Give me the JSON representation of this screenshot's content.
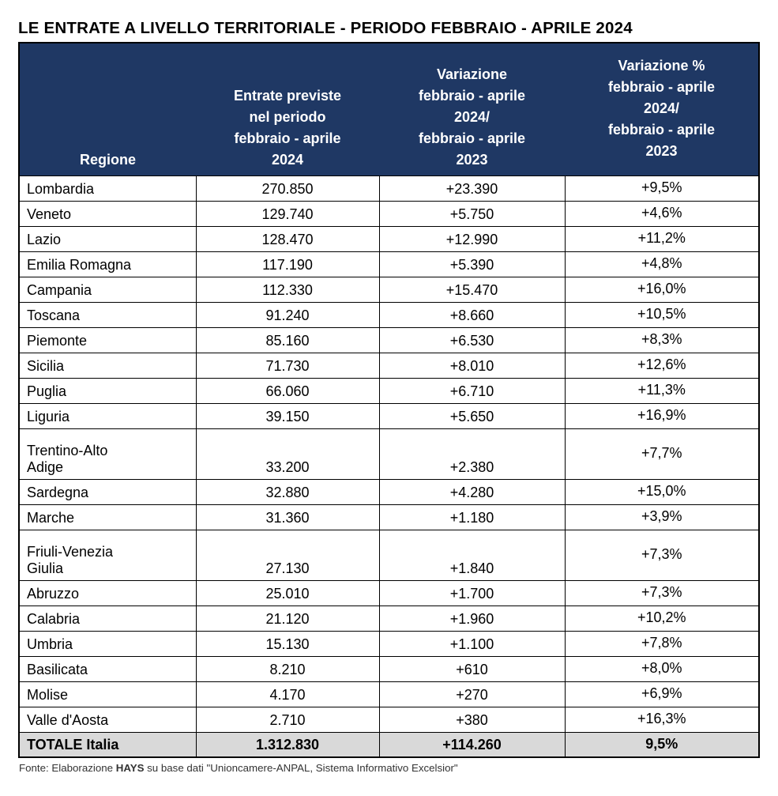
{
  "title": "LE ENTRATE A LIVELLO TERRITORIALE - PERIODO FEBBRAIO - APRILE 2024",
  "colors": {
    "header_bg": "#1F3864",
    "header_text": "#FFFFFF",
    "total_row_bg": "#D9D9D9",
    "border": "#000000",
    "page_bg": "#FFFFFF"
  },
  "table": {
    "columns": [
      {
        "label": "Regione"
      },
      {
        "label": "Entrate previste\nnel periodo\nfebbraio - aprile\n2024"
      },
      {
        "label": "Variazione\nfebbraio - aprile\n2024/\nfebbraio - aprile\n2023"
      },
      {
        "label": "Variazione %\nfebbraio - aprile\n2024/\nfebbraio - aprile\n2023"
      }
    ],
    "rows": [
      {
        "regione": "Lombardia",
        "entrate": "270.850",
        "variazione": "+23.390",
        "variazione_pct": "+9,5%"
      },
      {
        "regione": "Veneto",
        "entrate": "129.740",
        "variazione": "+5.750",
        "variazione_pct": "+4,6%"
      },
      {
        "regione": "Lazio",
        "entrate": "128.470",
        "variazione": "+12.990",
        "variazione_pct": "+11,2%"
      },
      {
        "regione": "Emilia Romagna",
        "entrate": "117.190",
        "variazione": "+5.390",
        "variazione_pct": "+4,8%"
      },
      {
        "regione": "Campania",
        "entrate": "112.330",
        "variazione": "+15.470",
        "variazione_pct": "+16,0%"
      },
      {
        "regione": "Toscana",
        "entrate": "91.240",
        "variazione": "+8.660",
        "variazione_pct": "+10,5%"
      },
      {
        "regione": "Piemonte",
        "entrate": "85.160",
        "variazione": "+6.530",
        "variazione_pct": "+8,3%"
      },
      {
        "regione": "Sicilia",
        "entrate": "71.730",
        "variazione": "+8.010",
        "variazione_pct": "+12,6%"
      },
      {
        "regione": "Puglia",
        "entrate": "66.060",
        "variazione": "+6.710",
        "variazione_pct": "+11,3%"
      },
      {
        "regione": "Liguria",
        "entrate": "39.150",
        "variazione": "+5.650",
        "variazione_pct": "+16,9%"
      },
      {
        "regione": "Trentino-Alto\nAdige",
        "entrate": "33.200",
        "variazione": "+2.380",
        "variazione_pct": "+7,7%"
      },
      {
        "regione": "Sardegna",
        "entrate": "32.880",
        "variazione": "+4.280",
        "variazione_pct": "+15,0%"
      },
      {
        "regione": "Marche",
        "entrate": "31.360",
        "variazione": "+1.180",
        "variazione_pct": "+3,9%"
      },
      {
        "regione": "Friuli-Venezia\nGiulia",
        "entrate": "27.130",
        "variazione": "+1.840",
        "variazione_pct": "+7,3%"
      },
      {
        "regione": "Abruzzo",
        "entrate": "25.010",
        "variazione": "+1.700",
        "variazione_pct": "+7,3%"
      },
      {
        "regione": "Calabria",
        "entrate": "21.120",
        "variazione": "+1.960",
        "variazione_pct": "+10,2%"
      },
      {
        "regione": "Umbria",
        "entrate": "15.130",
        "variazione": "+1.100",
        "variazione_pct": "+7,8%"
      },
      {
        "regione": "Basilicata",
        "entrate": "8.210",
        "variazione": "+610",
        "variazione_pct": "+8,0%"
      },
      {
        "regione": "Molise",
        "entrate": "4.170",
        "variazione": "+270",
        "variazione_pct": "+6,9%"
      },
      {
        "regione": "Valle d'Aosta",
        "entrate": "2.710",
        "variazione": "+380",
        "variazione_pct": "+16,3%"
      }
    ],
    "total_row": {
      "regione": "TOTALE Italia",
      "entrate": "1.312.830",
      "variazione": "+114.260",
      "variazione_pct": "9,5%"
    }
  },
  "footer": {
    "prefix": "Fonte: Elaborazione ",
    "brand": "HAYS",
    "suffix": " su base dati \"Unioncamere-ANPAL, Sistema Informativo Excelsior\""
  },
  "chart_data": {
    "type": "table",
    "title": "LE ENTRATE A LIVELLO TERRITORIALE - PERIODO FEBBRAIO - APRILE 2024",
    "columns": [
      "Regione",
      "Entrate previste nel periodo febbraio - aprile 2024",
      "Variazione febbraio - aprile 2024/ febbraio - aprile 2023",
      "Variazione % febbraio - aprile 2024/ febbraio - aprile 2023"
    ],
    "rows": [
      [
        "Lombardia",
        270850,
        23390,
        9.5
      ],
      [
        "Veneto",
        129740,
        5750,
        4.6
      ],
      [
        "Lazio",
        128470,
        12990,
        11.2
      ],
      [
        "Emilia Romagna",
        117190,
        5390,
        4.8
      ],
      [
        "Campania",
        112330,
        15470,
        16.0
      ],
      [
        "Toscana",
        91240,
        8660,
        10.5
      ],
      [
        "Piemonte",
        85160,
        6530,
        8.3
      ],
      [
        "Sicilia",
        71730,
        8010,
        12.6
      ],
      [
        "Puglia",
        66060,
        6710,
        11.3
      ],
      [
        "Liguria",
        39150,
        5650,
        16.9
      ],
      [
        "Trentino-Alto Adige",
        33200,
        2380,
        7.7
      ],
      [
        "Sardegna",
        32880,
        4280,
        15.0
      ],
      [
        "Marche",
        31360,
        1180,
        3.9
      ],
      [
        "Friuli-Venezia Giulia",
        27130,
        1840,
        7.3
      ],
      [
        "Abruzzo",
        25010,
        1700,
        7.3
      ],
      [
        "Calabria",
        21120,
        1960,
        10.2
      ],
      [
        "Umbria",
        15130,
        1100,
        7.8
      ],
      [
        "Basilicata",
        8210,
        610,
        8.0
      ],
      [
        "Molise",
        4170,
        270,
        6.9
      ],
      [
        "Valle d'Aosta",
        2710,
        380,
        16.3
      ]
    ],
    "total": [
      "TOTALE Italia",
      1312830,
      114260,
      9.5
    ],
    "source": "Fonte: Elaborazione HAYS su base dati \"Unioncamere-ANPAL, Sistema Informativo Excelsior\""
  }
}
